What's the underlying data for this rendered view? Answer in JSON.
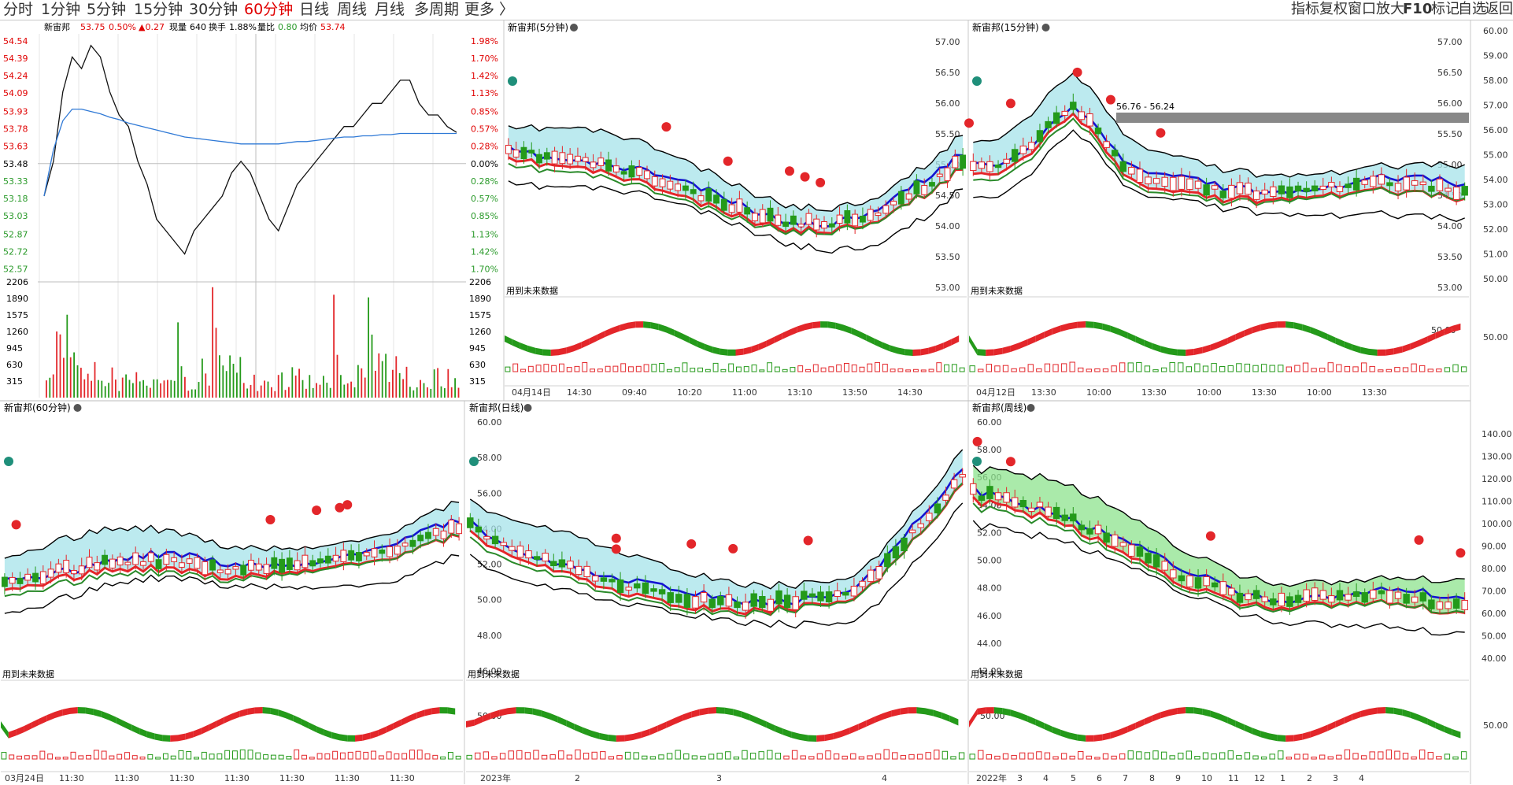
{
  "periods": [
    "分时",
    "1分钟",
    "5分钟",
    "15分钟",
    "30分钟",
    "60分钟",
    "日线",
    "周线",
    "月线",
    "多周期",
    "更多"
  ],
  "active_period": "60分钟",
  "more_arrow": "〉",
  "right_tools": [
    "指标",
    "复权",
    "窗口",
    "放大",
    "F10",
    "标记",
    "自选",
    "返回"
  ],
  "accent": "#e00000",
  "colors": {
    "up": "#e3262a",
    "down": "#249a1a",
    "ma_blue": "#1414d2",
    "fill_cyan": "#a6e3e9",
    "fill_green": "#8ee38e"
  },
  "intraday": {
    "header": {
      "name": "新宙邦",
      "price": "53.75",
      "change_pct": "0.50%",
      "change": "▲0.27",
      "vol_label": "现量",
      "vol": "640",
      "turn_label": "换手",
      "turn": "1.88%",
      "ratio_label": "量比",
      "ratio": "0.80",
      "avg_label": "均价",
      "avg": "53.74"
    },
    "price_ticks": [
      "54.54",
      "54.39",
      "54.24",
      "54.09",
      "53.93",
      "53.78",
      "53.63",
      "53.48",
      "53.33",
      "53.18",
      "53.03",
      "52.87",
      "52.72",
      "52.57"
    ],
    "pct_ticks": [
      "1.98%",
      "1.70%",
      "1.42%",
      "1.13%",
      "0.85%",
      "0.57%",
      "0.28%",
      "0.00%",
      "0.28%",
      "0.57%",
      "0.85%",
      "1.13%",
      "1.42%",
      "1.70%"
    ],
    "vol_ticks": [
      "2206",
      "1890",
      "1575",
      "1260",
      "945",
      "630",
      "315"
    ],
    "chart_data": {
      "type": "line",
      "series": [
        {
          "values": [
            53.2,
            53.5,
            54.1,
            54.4,
            54.3,
            54.5,
            54.4,
            54.1,
            53.9,
            53.8,
            53.5,
            53.3,
            53.0,
            52.9,
            52.8,
            52.7,
            52.9,
            53.0,
            53.1,
            53.2,
            53.4,
            53.5,
            53.4,
            53.2,
            53.0,
            52.9,
            53.1,
            53.3,
            53.4,
            53.5,
            53.6,
            53.7,
            53.8,
            53.8,
            53.9,
            54.0,
            54.0,
            54.1,
            54.2,
            54.2,
            54.0,
            53.9,
            53.9,
            53.8,
            53.75
          ]
        },
        {
          "values": [
            53.2,
            53.6,
            53.85,
            53.95,
            53.95,
            53.93,
            53.91,
            53.88,
            53.86,
            53.83,
            53.81,
            53.79,
            53.77,
            53.75,
            53.73,
            53.71,
            53.7,
            53.69,
            53.68,
            53.67,
            53.66,
            53.65,
            53.65,
            53.65,
            53.65,
            53.65,
            53.66,
            53.67,
            53.67,
            53.68,
            53.69,
            53.7,
            53.71,
            53.71,
            53.72,
            53.72,
            53.73,
            53.73,
            53.74,
            53.74,
            53.74,
            53.74,
            53.74,
            53.74,
            53.74
          ]
        }
      ],
      "ylim": [
        52.5,
        54.6
      ],
      "base": 53.48,
      "volume": {
        "max": 2206,
        "values": [
          820,
          600,
          450,
          1900,
          1200,
          800,
          1500,
          1100,
          900,
          650,
          500,
          700,
          400,
          350,
          600,
          480,
          300,
          420,
          380,
          500,
          350,
          280,
          450,
          600,
          300,
          400,
          520,
          380,
          460,
          330,
          280,
          390,
          310,
          250,
          360,
          420,
          290,
          330,
          1650,
          900,
          380,
          270,
          340,
          300,
          250
        ]
      }
    }
  },
  "panels": [
    {
      "title": "新宙邦(5分钟)",
      "note": "用到未来数据",
      "y_ticks": [
        "57.00",
        "56.50",
        "56.00",
        "55.50",
        "55.00",
        "54.50",
        "54.00",
        "53.50",
        "53.00"
      ],
      "sub_ticks": [],
      "x_ticks": [
        "04月14日",
        "14:30",
        "09:40",
        "10:20",
        "11:00",
        "13:10",
        "13:50",
        "14:30"
      ]
    },
    {
      "title": "新宙邦(15分钟)",
      "note": "用到未来数据",
      "range_label": "56.76 - 56.24",
      "y_ticks": [
        "57.00",
        "56.50",
        "56.00",
        "55.50",
        "55.00",
        "54.50",
        "54.00",
        "53.50",
        "53.00"
      ],
      "sub_ticks": [
        "50.00"
      ],
      "x_ticks": [
        "04月12日",
        "13:30",
        "10:00",
        "13:30",
        "10:00",
        "13:30",
        "10:00",
        "13:30"
      ]
    },
    {
      "title": "新宙邦(60分钟)",
      "note": "用到未来数据",
      "y_ticks": [],
      "sub_ticks": [],
      "x_ticks": [
        "03月24日",
        "11:30",
        "11:30",
        "11:30",
        "11:30",
        "11:30",
        "11:30",
        "11:30"
      ]
    },
    {
      "title": "新宙邦(日线)",
      "note": "用到未来数据",
      "y_ticks": [
        "60.00",
        "58.00",
        "56.00",
        "54.00",
        "52.00",
        "50.00",
        "48.00",
        "46.00"
      ],
      "sub_ticks": [
        "50.00"
      ],
      "x_ticks": [
        "2023年",
        "2",
        "3",
        "4"
      ]
    },
    {
      "title": "新宙邦(周线)",
      "note": "用到未来数据",
      "y_ticks": [
        "60.00",
        "58.00",
        "56.00",
        "54.00",
        "52.00",
        "50.00",
        "48.00",
        "46.00",
        "44.00",
        "42.00"
      ],
      "sub_ticks": [
        "50.00"
      ],
      "x_ticks": [
        "2022年",
        "3",
        "4",
        "5",
        "6",
        "7",
        "8",
        "9",
        "10",
        "11",
        "12",
        "1",
        "2",
        "3",
        "4"
      ]
    }
  ],
  "right_axes": {
    "top": [
      "60.00",
      "59.00",
      "58.00",
      "57.00",
      "56.00",
      "55.00",
      "54.00",
      "53.00",
      "52.00",
      "51.00",
      "50.00"
    ],
    "top_sub": [
      "50.00"
    ],
    "bottom": [
      "140.00",
      "130.00",
      "120.00",
      "110.00",
      "100.00",
      "90.00",
      "80.00",
      "70.00",
      "60.00",
      "50.00",
      "40.00"
    ],
    "bottom_sub": [
      "50.00"
    ]
  }
}
